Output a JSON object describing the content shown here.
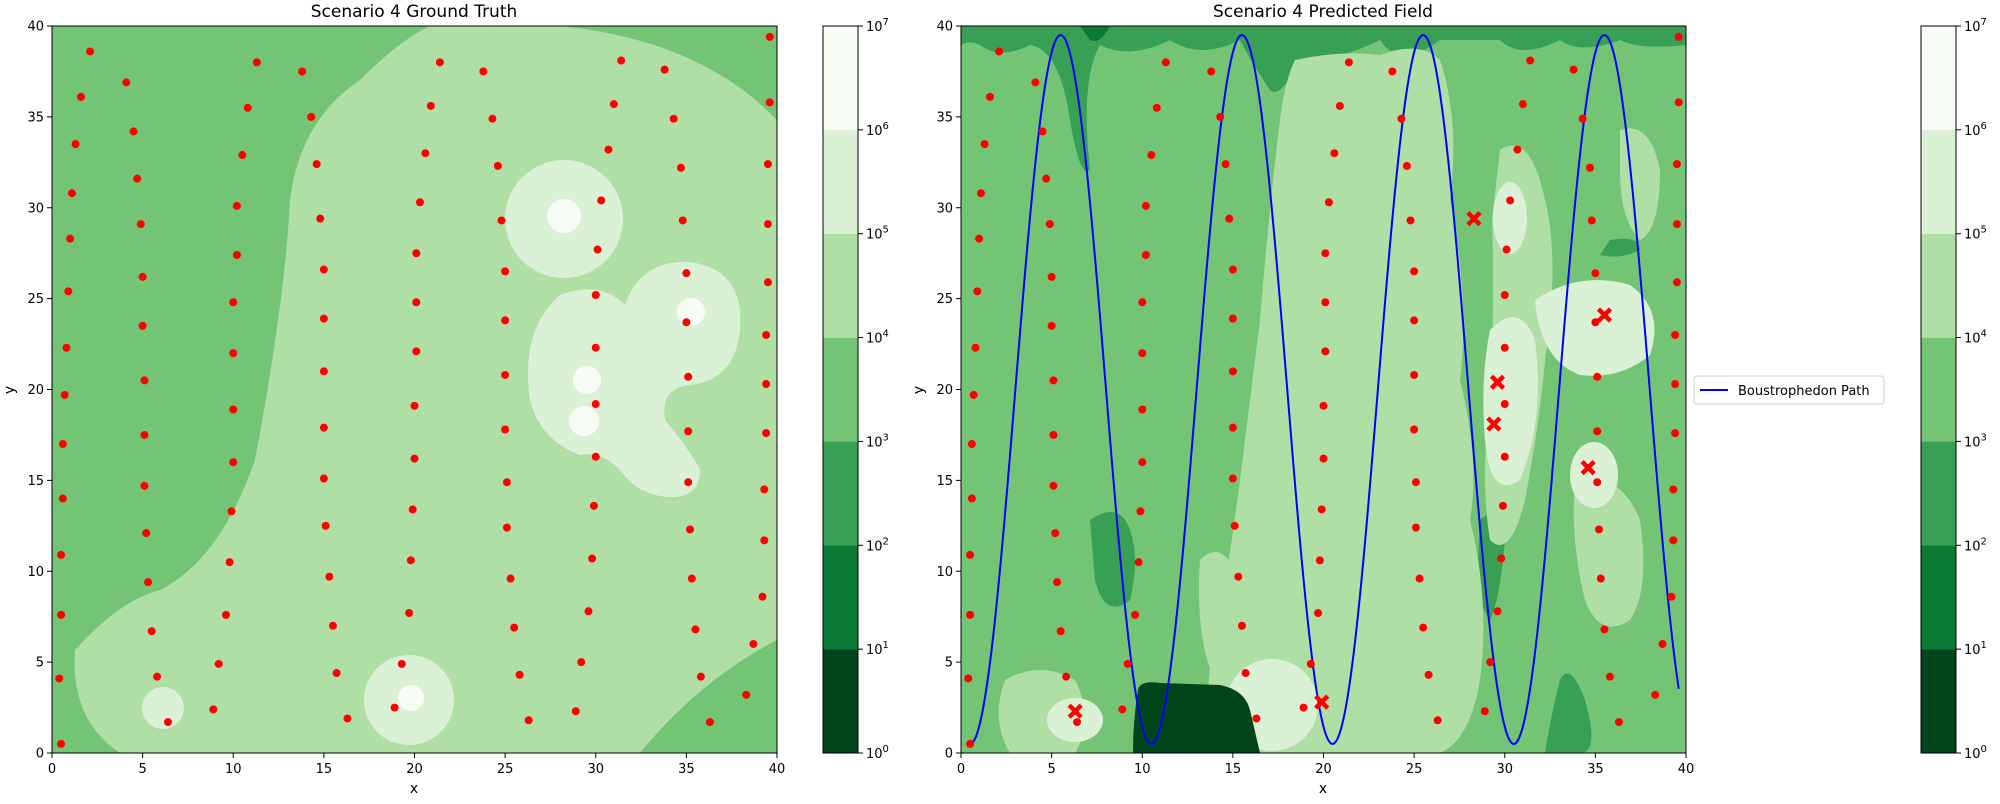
{
  "chart_data": [
    {
      "type": "contour",
      "title": "Scenario 4 Ground Truth",
      "xlabel": "x",
      "ylabel": "y",
      "xlim": [
        0,
        40
      ],
      "ylim": [
        0,
        40
      ],
      "xticks": [
        0,
        5,
        10,
        15,
        20,
        25,
        30,
        35,
        40
      ],
      "yticks": [
        0,
        5,
        10,
        15,
        20,
        25,
        30,
        35,
        40
      ],
      "colorbar": {
        "scale": "log",
        "ticks": [
          "10^0",
          "10^1",
          "10^2",
          "10^3",
          "10^4",
          "10^5",
          "10^6",
          "10^7"
        ],
        "levels": [
          1,
          10,
          100,
          1000,
          10000,
          100000,
          1000000,
          10000000
        ],
        "colors": [
          "#00441b",
          "#0a7a35",
          "#37a055",
          "#74c476",
          "#b0dfa6",
          "#dbf1d6",
          "#f7fcf5"
        ]
      },
      "samples": {
        "color": "#ff0000",
        "points": [
          [
            0.5,
            0.5
          ],
          [
            0.4,
            4.1
          ],
          [
            0.5,
            7.6
          ],
          [
            0.5,
            10.9
          ],
          [
            0.6,
            14
          ],
          [
            0.6,
            17
          ],
          [
            0.7,
            19.7
          ],
          [
            0.8,
            22.3
          ],
          [
            0.9,
            25.4
          ],
          [
            1,
            28.3
          ],
          [
            1.1,
            30.8
          ],
          [
            1.3,
            33.5
          ],
          [
            1.6,
            36.1
          ],
          [
            2.1,
            38.6
          ],
          [
            4.1,
            36.9
          ],
          [
            4.5,
            34.2
          ],
          [
            4.7,
            31.6
          ],
          [
            4.9,
            29.1
          ],
          [
            5,
            26.2
          ],
          [
            5,
            23.5
          ],
          [
            5.1,
            20.5
          ],
          [
            5.1,
            17.5
          ],
          [
            5.1,
            14.7
          ],
          [
            5.2,
            12.1
          ],
          [
            5.3,
            9.4
          ],
          [
            5.5,
            6.7
          ],
          [
            5.8,
            4.2
          ],
          [
            6.4,
            1.7
          ],
          [
            8.9,
            2.4
          ],
          [
            9.2,
            4.9
          ],
          [
            9.6,
            7.6
          ],
          [
            9.8,
            10.5
          ],
          [
            9.9,
            13.3
          ],
          [
            10,
            16
          ],
          [
            10,
            18.9
          ],
          [
            10,
            22
          ],
          [
            10,
            24.8
          ],
          [
            10.2,
            27.4
          ],
          [
            10.2,
            30.1
          ],
          [
            10.5,
            32.9
          ],
          [
            10.8,
            35.5
          ],
          [
            11.3,
            38
          ],
          [
            13.8,
            37.5
          ],
          [
            14.3,
            35
          ],
          [
            14.6,
            32.4
          ],
          [
            14.8,
            29.4
          ],
          [
            15,
            26.6
          ],
          [
            15,
            23.9
          ],
          [
            15,
            21
          ],
          [
            15,
            17.9
          ],
          [
            15,
            15.1
          ],
          [
            15.1,
            12.5
          ],
          [
            15.3,
            9.7
          ],
          [
            15.5,
            7
          ],
          [
            15.7,
            4.4
          ],
          [
            16.3,
            1.9
          ],
          [
            18.9,
            2.5
          ],
          [
            19.3,
            4.9
          ],
          [
            19.7,
            7.7
          ],
          [
            19.8,
            10.6
          ],
          [
            19.9,
            13.4
          ],
          [
            20,
            16.2
          ],
          [
            20,
            19.1
          ],
          [
            20.1,
            22.1
          ],
          [
            20.1,
            24.8
          ],
          [
            20.1,
            27.5
          ],
          [
            20.3,
            30.3
          ],
          [
            20.6,
            33
          ],
          [
            20.9,
            35.6
          ],
          [
            21.4,
            38
          ],
          [
            23.8,
            37.5
          ],
          [
            24.3,
            34.9
          ],
          [
            24.6,
            32.3
          ],
          [
            24.8,
            29.3
          ],
          [
            25,
            26.5
          ],
          [
            25,
            23.8
          ],
          [
            25,
            20.8
          ],
          [
            25,
            17.8
          ],
          [
            25.1,
            14.9
          ],
          [
            25.1,
            12.4
          ],
          [
            25.3,
            9.6
          ],
          [
            25.5,
            6.9
          ],
          [
            25.8,
            4.3
          ],
          [
            26.3,
            1.8
          ],
          [
            28.9,
            2.3
          ],
          [
            29.2,
            5
          ],
          [
            29.6,
            7.8
          ],
          [
            29.8,
            10.7
          ],
          [
            29.9,
            13.6
          ],
          [
            30,
            16.3
          ],
          [
            30,
            19.2
          ],
          [
            30,
            22.3
          ],
          [
            30,
            25.2
          ],
          [
            30.1,
            27.7
          ],
          [
            30.3,
            30.4
          ],
          [
            30.7,
            33.2
          ],
          [
            31,
            35.7
          ],
          [
            31.4,
            38.1
          ],
          [
            33.8,
            37.6
          ],
          [
            34.3,
            34.9
          ],
          [
            34.7,
            32.2
          ],
          [
            34.8,
            29.3
          ],
          [
            35,
            26.4
          ],
          [
            35,
            23.7
          ],
          [
            35.1,
            20.7
          ],
          [
            35.1,
            17.7
          ],
          [
            35.1,
            14.9
          ],
          [
            35.2,
            12.3
          ],
          [
            35.3,
            9.6
          ],
          [
            35.5,
            6.8
          ],
          [
            35.8,
            4.2
          ],
          [
            36.3,
            1.7
          ],
          [
            38.3,
            3.2
          ],
          [
            38.7,
            6
          ],
          [
            39.2,
            8.6
          ],
          [
            39.3,
            11.7
          ],
          [
            39.3,
            14.5
          ],
          [
            39.4,
            17.6
          ],
          [
            39.4,
            20.3
          ],
          [
            39.4,
            23
          ],
          [
            39.5,
            25.9
          ],
          [
            39.5,
            29.1
          ],
          [
            39.5,
            32.4
          ],
          [
            39.6,
            35.8
          ],
          [
            39.6,
            39.4
          ]
        ]
      },
      "hotspots": [
        [
          28.3,
          29.5
        ],
        [
          33.2,
          23.9
        ],
        [
          29.5,
          20.4
        ],
        [
          29.3,
          18.2
        ],
        [
          6.2,
          2.3
        ],
        [
          19.9,
          2.9
        ]
      ]
    },
    {
      "type": "contour",
      "title": "Scenario 4 Predicted Field",
      "xlabel": "x",
      "ylabel": "y",
      "xlim": [
        0,
        40
      ],
      "ylim": [
        0,
        40
      ],
      "xticks": [
        0,
        5,
        10,
        15,
        20,
        25,
        30,
        35,
        40
      ],
      "yticks": [
        0,
        5,
        10,
        15,
        20,
        25,
        30,
        35,
        40
      ],
      "colorbar": {
        "scale": "log",
        "ticks": [
          "10^0",
          "10^1",
          "10^2",
          "10^3",
          "10^4",
          "10^5",
          "10^6",
          "10^7"
        ],
        "levels": [
          1,
          10,
          100,
          1000,
          10000,
          100000,
          1000000,
          10000000
        ],
        "colors": [
          "#00441b",
          "#0a7a35",
          "#37a055",
          "#74c476",
          "#b0dfa6",
          "#dbf1d6",
          "#f7fcf5"
        ]
      },
      "legend": {
        "placement": "outside-right",
        "entries": [
          {
            "label": "Boustrophedon Path",
            "color": "#0000ff"
          }
        ]
      },
      "path": {
        "color": "#0000ff",
        "amplitude": 19.5,
        "center_y": 20,
        "period_x": 10,
        "x_start": 0.5,
        "x_end": 39.6
      },
      "predicted_sources": {
        "color": "#ff0000",
        "marker": "X",
        "points": [
          [
            6.3,
            2.3
          ],
          [
            19.9,
            2.8
          ],
          [
            28.3,
            29.4
          ],
          [
            29.6,
            20.4
          ],
          [
            29.4,
            18.1
          ],
          [
            34.6,
            15.7
          ],
          [
            35.5,
            24.1
          ]
        ]
      }
    }
  ]
}
